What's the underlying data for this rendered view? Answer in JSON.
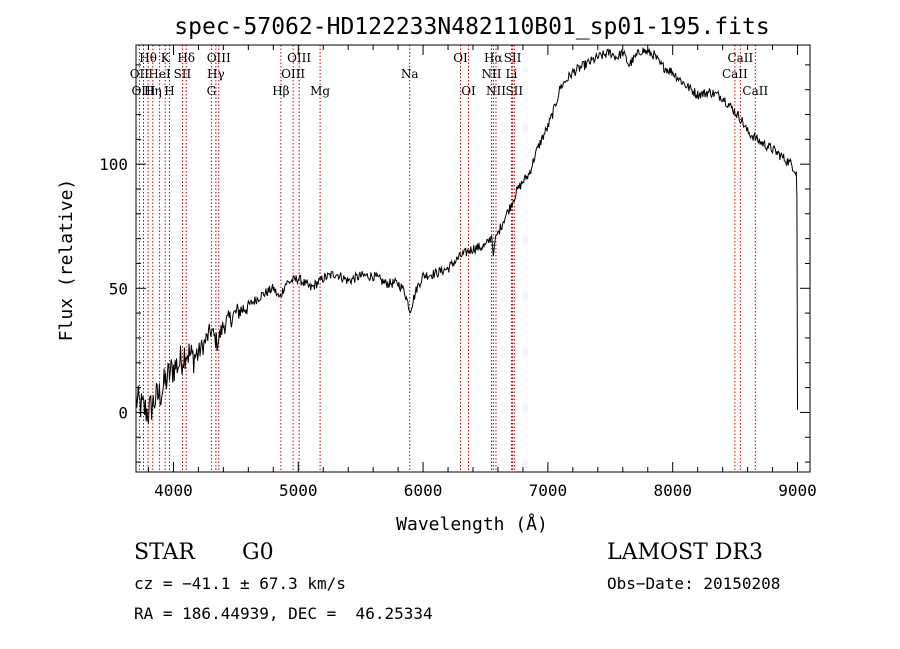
{
  "chart_data": {
    "type": "line",
    "title": "spec-57062-HD122233N482110B01_sp01-195.fits",
    "xlabel": "Wavelength (Å)",
    "ylabel": "Flux (relative)",
    "xlim": [
      3700,
      9100
    ],
    "ylim": [
      -24,
      148
    ],
    "xticks": [
      4000,
      5000,
      6000,
      7000,
      8000,
      9000
    ],
    "yticks": [
      0,
      50,
      100
    ],
    "series": [
      {
        "name": "flux",
        "x": [
          3700,
          3750,
          3800,
          3850,
          3900,
          3950,
          4000,
          4050,
          4100,
          4150,
          4200,
          4250,
          4300,
          4350,
          4400,
          4500,
          4600,
          4700,
          4800,
          4850,
          4900,
          5000,
          5100,
          5200,
          5300,
          5400,
          5500,
          5600,
          5700,
          5800,
          5850,
          5895,
          5950,
          6000,
          6100,
          6200,
          6300,
          6400,
          6500,
          6550,
          6563,
          6580,
          6600,
          6650,
          6700,
          6750,
          6800,
          6850,
          6900,
          6950,
          7000,
          7050,
          7100,
          7150,
          7200,
          7300,
          7400,
          7500,
          7550,
          7600,
          7650,
          7700,
          7750,
          7800,
          7850,
          7900,
          8000,
          8100,
          8200,
          8300,
          8400,
          8500,
          8550,
          8600,
          8650,
          8700,
          8800,
          8900,
          8950,
          8990,
          8995,
          9000
        ],
        "values": [
          5,
          2,
          0,
          5,
          8,
          14,
          18,
          20,
          25,
          22,
          24,
          28,
          33,
          28,
          35,
          40,
          43,
          47,
          50,
          46,
          52,
          54,
          50,
          54,
          56,
          53,
          55,
          55,
          52,
          52,
          49,
          41,
          50,
          55,
          56,
          58,
          63,
          66,
          67,
          71,
          63,
          71,
          72,
          78,
          83,
          89,
          93,
          96,
          104,
          110,
          115,
          122,
          131,
          134,
          137,
          140,
          143,
          145,
          143,
          145,
          140,
          143,
          146,
          145,
          144,
          140,
          137,
          132,
          128,
          129,
          127,
          121,
          118,
          113,
          111,
          109,
          106,
          102,
          100,
          97,
          87,
          1
        ]
      }
    ],
    "lines": [
      {
        "label": "Hθ",
        "wavelength": 3797,
        "row": 1
      },
      {
        "label": "OII",
        "wavelength": 3727,
        "row": 2
      },
      {
        "label": "OIII",
        "wavelength": 3760,
        "row": 3
      },
      {
        "label": "K",
        "wavelength": 3934,
        "row": 1
      },
      {
        "label": "HeI",
        "wavelength": 3889,
        "row": 2
      },
      {
        "label": "Hη",
        "wavelength": 3835,
        "row": 3
      },
      {
        "label": "SII",
        "wavelength": 4072,
        "row": 2
      },
      {
        "label": "H",
        "wavelength": 3968,
        "row": 3
      },
      {
        "label": "Hδ",
        "wavelength": 4102,
        "row": 1
      },
      {
        "label": "OIII",
        "wavelength": 4363,
        "row": 1
      },
      {
        "label": "Hγ",
        "wavelength": 4340,
        "row": 2
      },
      {
        "label": "G",
        "wavelength": 4304,
        "row": 3
      },
      {
        "label": "Hβ",
        "wavelength": 4861,
        "row": 3
      },
      {
        "label": "OIII",
        "wavelength": 5007,
        "row": 1
      },
      {
        "label": "OIII",
        "wavelength": 4959,
        "row": 2
      },
      {
        "label": "Mg",
        "wavelength": 5175,
        "row": 3
      },
      {
        "label": "Na",
        "wavelength": 5893,
        "row": 2
      },
      {
        "label": "OI",
        "wavelength": 6300,
        "row": 1
      },
      {
        "label": "OI",
        "wavelength": 6364,
        "row": 3
      },
      {
        "label": "Hα",
        "wavelength": 6563,
        "row": 1
      },
      {
        "label": "NII",
        "wavelength": 6548,
        "row": 2
      },
      {
        "label": "NII",
        "wavelength": 6584,
        "row": 3
      },
      {
        "label": "SII",
        "wavelength": 6717,
        "row": 1
      },
      {
        "label": "Li",
        "wavelength": 6708,
        "row": 2
      },
      {
        "label": "SII",
        "wavelength": 6731,
        "row": 3
      },
      {
        "label": "CaII",
        "wavelength": 8542,
        "row": 1
      },
      {
        "label": "CaII",
        "wavelength": 8498,
        "row": 2
      },
      {
        "label": "CaII",
        "wavelength": 8662,
        "row": 3
      }
    ]
  },
  "info": {
    "class": "STAR",
    "subclass": "G0",
    "survey": "LAMOST DR3",
    "cz": "cz = −41.1 ± 67.3 km/s",
    "obs_date": "Obs−Date: 20150208",
    "coords": "RA = 186.44939, DEC =  46.25334"
  }
}
